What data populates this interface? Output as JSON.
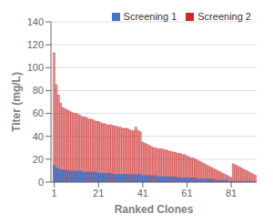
{
  "chart_data": {
    "type": "bar",
    "title": "",
    "xlabel": "Ranked Clones",
    "ylabel": "Titer (mg/L)",
    "x": [
      1,
      2,
      3,
      4,
      5,
      6,
      7,
      8,
      9,
      10,
      11,
      12,
      13,
      14,
      15,
      16,
      17,
      18,
      19,
      20,
      21,
      22,
      23,
      24,
      25,
      26,
      27,
      28,
      29,
      30,
      31,
      32,
      33,
      34,
      35,
      36,
      37,
      38,
      39,
      40,
      41,
      42,
      43,
      44,
      45,
      46,
      47,
      48,
      49,
      50,
      51,
      52,
      53,
      54,
      55,
      56,
      57,
      58,
      59,
      60,
      61,
      62,
      63,
      64,
      65,
      66,
      67,
      68,
      69,
      70,
      71,
      72,
      73,
      74,
      75,
      76,
      77,
      78,
      79,
      80,
      81,
      82,
      83,
      84,
      85,
      86,
      87,
      88,
      89,
      90,
      91,
      92
    ],
    "xlim": [
      -0.5,
      92.5
    ],
    "xticks": [
      1,
      21,
      41,
      61,
      81
    ],
    "ylim": [
      0,
      140
    ],
    "yticks": [
      0,
      20,
      40,
      60,
      80,
      100,
      120,
      140
    ],
    "grid": true,
    "legend": "upper right",
    "series": [
      {
        "name": "Screening 1",
        "color": "#4472C4",
        "values": [
          15,
          13,
          12,
          11,
          11,
          11,
          10,
          10,
          10,
          10,
          10,
          10,
          10,
          9,
          9,
          9,
          9,
          9,
          9,
          9,
          8,
          8,
          8,
          8,
          8,
          8,
          8,
          7,
          7,
          7,
          7,
          7,
          7,
          7,
          7,
          7,
          7,
          7,
          7,
          7,
          6,
          6,
          6,
          6,
          6,
          6,
          6,
          5,
          5,
          5,
          5,
          5,
          5,
          5,
          5,
          5,
          4,
          4,
          4,
          4,
          4,
          4,
          4,
          4,
          4,
          3,
          3,
          3,
          3,
          3,
          3,
          3,
          3,
          2,
          2,
          2,
          2,
          2,
          2,
          1,
          1,
          1,
          1,
          1,
          1,
          1,
          1,
          1,
          1,
          1,
          0,
          0
        ]
      },
      {
        "name": "Screening 2",
        "color": "#CC2929",
        "values": [
          113,
          85,
          76,
          69,
          65,
          64,
          63,
          62,
          61,
          60,
          60,
          59,
          58,
          57,
          57,
          56,
          55,
          55,
          54,
          53,
          53,
          52,
          51,
          51,
          50,
          50,
          50,
          49,
          49,
          48,
          48,
          47,
          47,
          47,
          46,
          45,
          45,
          48,
          45,
          44,
          35,
          34,
          33,
          32,
          31,
          30,
          30,
          29,
          29,
          29,
          28,
          28,
          27,
          27,
          26,
          26,
          25,
          25,
          24,
          24,
          23,
          22,
          21,
          21,
          20,
          19,
          18,
          17,
          16,
          15,
          14,
          13,
          12,
          11,
          10,
          9,
          8,
          7,
          6,
          5,
          4,
          16,
          15,
          14,
          13,
          12,
          11,
          10,
          9,
          8,
          7,
          6
        ]
      }
    ]
  }
}
